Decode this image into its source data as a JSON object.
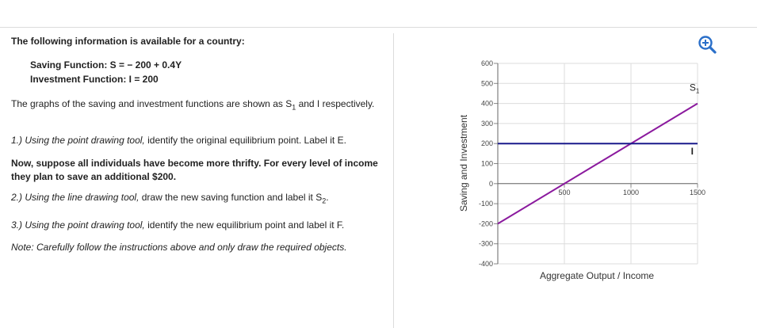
{
  "instructions": {
    "intro": "The following information is available for a country:",
    "saving_function": "Saving Function: S = − 200 + 0.4Y",
    "investment_function": "Investment Function: I = 200",
    "graphs_note_pre": "The graphs of the saving and investment functions are shown as S",
    "graphs_note_sub": "1",
    "graphs_note_post": " and I respectively.",
    "step1_italic": "1.) Using the point drawing tool,",
    "step1_rest": " identify the original equilibrium point. Label it E.",
    "thrifty": "Now, suppose all individuals have become more thrifty. For every level of income they plan to save an additional $200.",
    "step2_italic": "2.) Using the line drawing tool,",
    "step2_rest_pre": " draw the new saving function and label it S",
    "step2_sub": "2",
    "step2_end": ".",
    "step3_italic": "3.) Using the point drawing tool,",
    "step3_rest": " identify the new equilibrium point and label it F.",
    "note": "Note: Carefully follow the instructions above and only draw the required objects."
  },
  "toolbar": {
    "zoom_icon": "zoom-in-icon"
  },
  "chart_data": {
    "type": "line",
    "xlabel": "Aggregate Output / Income",
    "ylabel": "Saving and Investment",
    "xlim": [
      0,
      1500
    ],
    "ylim": [
      -400,
      600
    ],
    "x_ticks": [
      "500",
      "1000",
      "1500"
    ],
    "y_ticks": [
      "600",
      "500",
      "400",
      "300",
      "200",
      "100",
      "0",
      "-100",
      "-200",
      "-300",
      "-400"
    ],
    "series": [
      {
        "name": "S1",
        "label_base": "S",
        "label_sub": "1",
        "color": "#8b1a9e",
        "x": [
          0,
          1500
        ],
        "y": [
          -200,
          400
        ]
      },
      {
        "name": "I",
        "label_base": "I",
        "label_sub": "",
        "color": "#1a1a8c",
        "x": [
          0,
          1500
        ],
        "y": [
          200,
          200
        ]
      }
    ]
  }
}
